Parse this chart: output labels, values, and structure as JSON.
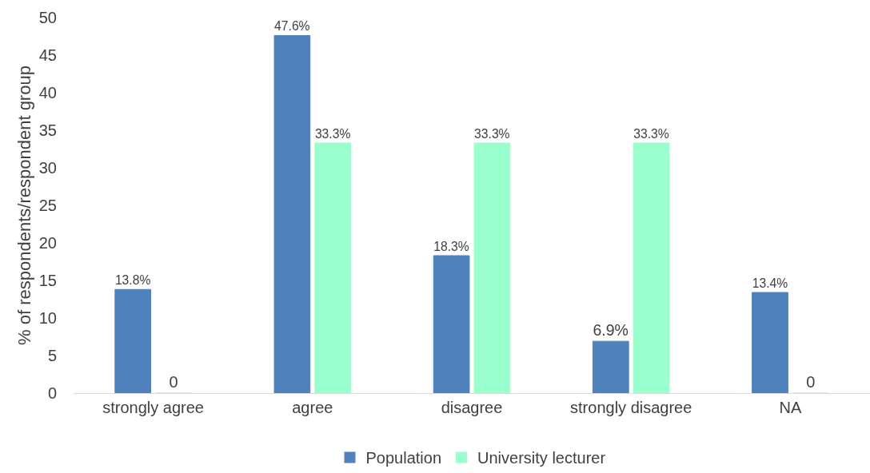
{
  "chart_data": {
    "type": "bar",
    "ylabel": "% of respondents/respondent group",
    "categories": [
      "strongly agree",
      "agree",
      "disagree",
      "strongly disagree",
      "NA"
    ],
    "series": [
      {
        "name": "Population",
        "color": "#4f81bd",
        "values": [
          13.8,
          47.6,
          18.3,
          6.9,
          13.4
        ],
        "value_labels": [
          "13.8%",
          "47.6%",
          "18.3%",
          "6.9%",
          "13.4%"
        ]
      },
      {
        "name": "University lecturer",
        "color": "#99ffcc",
        "values": [
          0,
          33.3,
          33.3,
          33.3,
          0
        ],
        "value_labels": [
          "0",
          "33.3%",
          "33.3%",
          "33.3%",
          "0"
        ]
      }
    ],
    "ylim": [
      0,
      50
    ],
    "yticks": [
      0,
      5,
      10,
      15,
      20,
      25,
      30,
      35,
      40,
      45,
      50
    ],
    "grid": false,
    "legend": "bottom"
  }
}
